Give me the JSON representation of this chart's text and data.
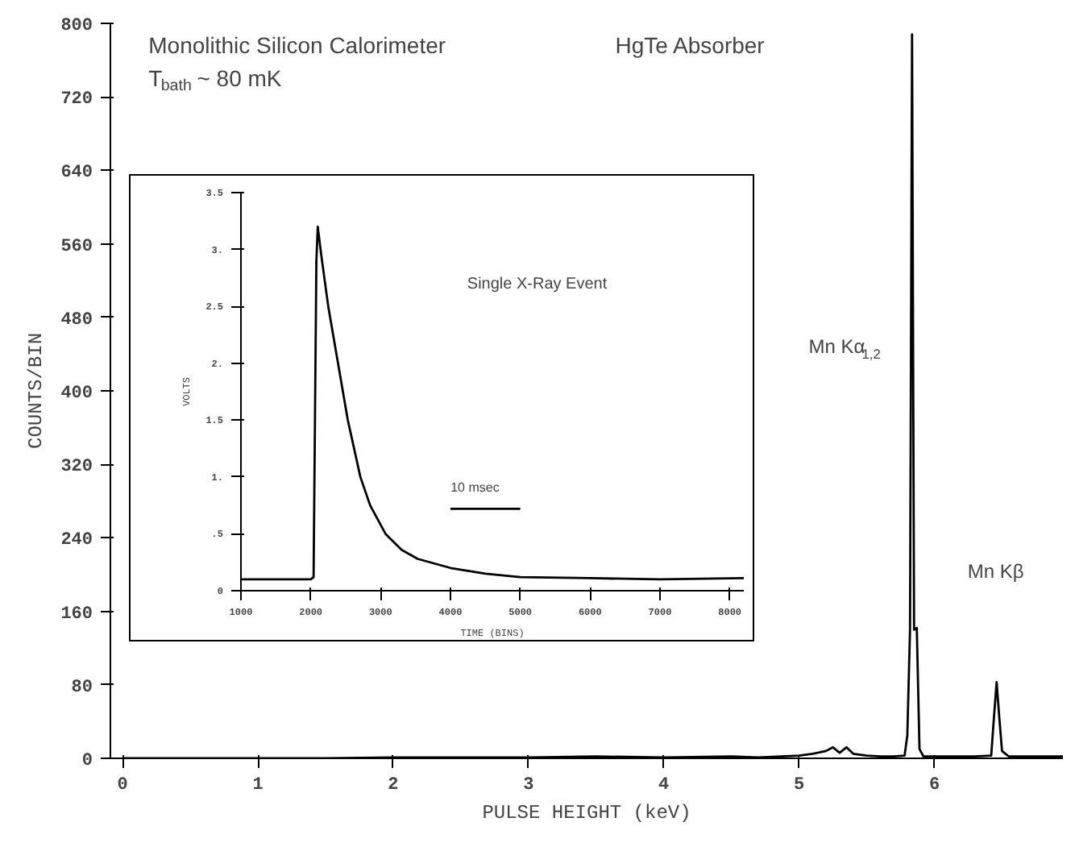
{
  "chart_data": [
    {
      "type": "line",
      "xlabel": "PULSE HEIGHT (keV)",
      "ylabel": "COUNTS/BIN",
      "xlim": [
        -0.09,
        6.95
      ],
      "ylim": [
        0,
        800
      ],
      "xticks": [
        0,
        1,
        2,
        3,
        4,
        5,
        6
      ],
      "yticks": [
        0,
        80,
        160,
        240,
        320,
        400,
        480,
        560,
        640,
        720,
        800
      ],
      "grid": false,
      "annotations": [
        "Monolithic Silicon Calorimeter",
        "T$_{bath}$ ~ 80 mK",
        "HgTe Absorber",
        "Mn Kα$_{1,2}$",
        "Mn Kβ"
      ],
      "series": [
        {
          "color": "#000000",
          "x": [
            0,
            0.5,
            1,
            1.5,
            2,
            2.5,
            3,
            3.5,
            4,
            4.5,
            4.7,
            5.0,
            5.1,
            5.2,
            5.25,
            5.3,
            5.35,
            5.4,
            5.5,
            5.6,
            5.7,
            5.78,
            5.8,
            5.82,
            5.835,
            5.85,
            5.87,
            5.89,
            5.92,
            6.3,
            6.42,
            6.44,
            6.46,
            6.48,
            6.5,
            6.55,
            6.95
          ],
          "values": [
            0,
            0,
            0,
            0,
            1,
            1,
            1,
            2,
            1,
            2,
            1,
            3,
            5,
            8,
            12,
            6,
            12,
            5,
            3,
            2,
            2,
            3,
            25,
            140,
            788,
            140,
            142,
            10,
            2,
            2,
            3,
            44,
            83,
            44,
            8,
            2,
            2
          ]
        }
      ]
    },
    {
      "type": "line",
      "xlabel": "TIME (BINS)",
      "ylabel": "VOLTS",
      "xlim": [
        1000,
        8200
      ],
      "ylim": [
        0,
        3.5
      ],
      "xticks": [
        1000,
        2000,
        3000,
        4000,
        5000,
        6000,
        7000,
        8000
      ],
      "yticks": [
        0,
        {
          "value": 0.5,
          "label": ".5"
        },
        {
          "value": 1,
          "label": "1."
        },
        1.5,
        {
          "value": 2,
          "label": "2."
        },
        2.5,
        {
          "value": 3,
          "label": "3."
        },
        3.5
      ],
      "grid": false,
      "annotations": [
        "Single X-Ray Event",
        "10 msec"
      ],
      "series": [
        {
          "color": "#000000",
          "x": [
            1000,
            1500,
            2000,
            2040,
            2080,
            2100,
            2150,
            2250,
            2390,
            2530,
            2710,
            2850,
            3070,
            3300,
            3530,
            4000,
            4500,
            5000,
            6000,
            7000,
            8200
          ],
          "values": [
            0.1,
            0.1,
            0.1,
            0.12,
            2.9,
            3.2,
            2.95,
            2.5,
            2.0,
            1.5,
            1.0,
            0.75,
            0.5,
            0.36,
            0.28,
            0.2,
            0.15,
            0.12,
            0.11,
            0.1,
            0.11
          ]
        },
        {
          "color": "#000000",
          "x": [
            4000,
            5000
          ],
          "values": [
            0.72,
            0.72
          ]
        }
      ]
    }
  ]
}
